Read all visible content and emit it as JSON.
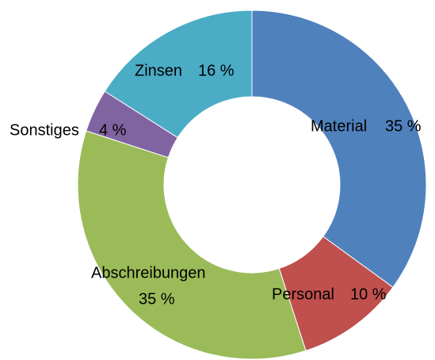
{
  "chart_data": {
    "type": "donut",
    "categories": [
      "Material",
      "Personal",
      "Abschreibungen",
      "Sonstiges",
      "Zinsen"
    ],
    "values": [
      35,
      10,
      35,
      4,
      16
    ],
    "value_labels": [
      "35 %",
      "10 %",
      "35 %",
      "4 %",
      "16 %"
    ],
    "colors": [
      "#4f81bd",
      "#c0504d",
      "#9bbb59",
      "#8064a2",
      "#4bacc6"
    ]
  }
}
